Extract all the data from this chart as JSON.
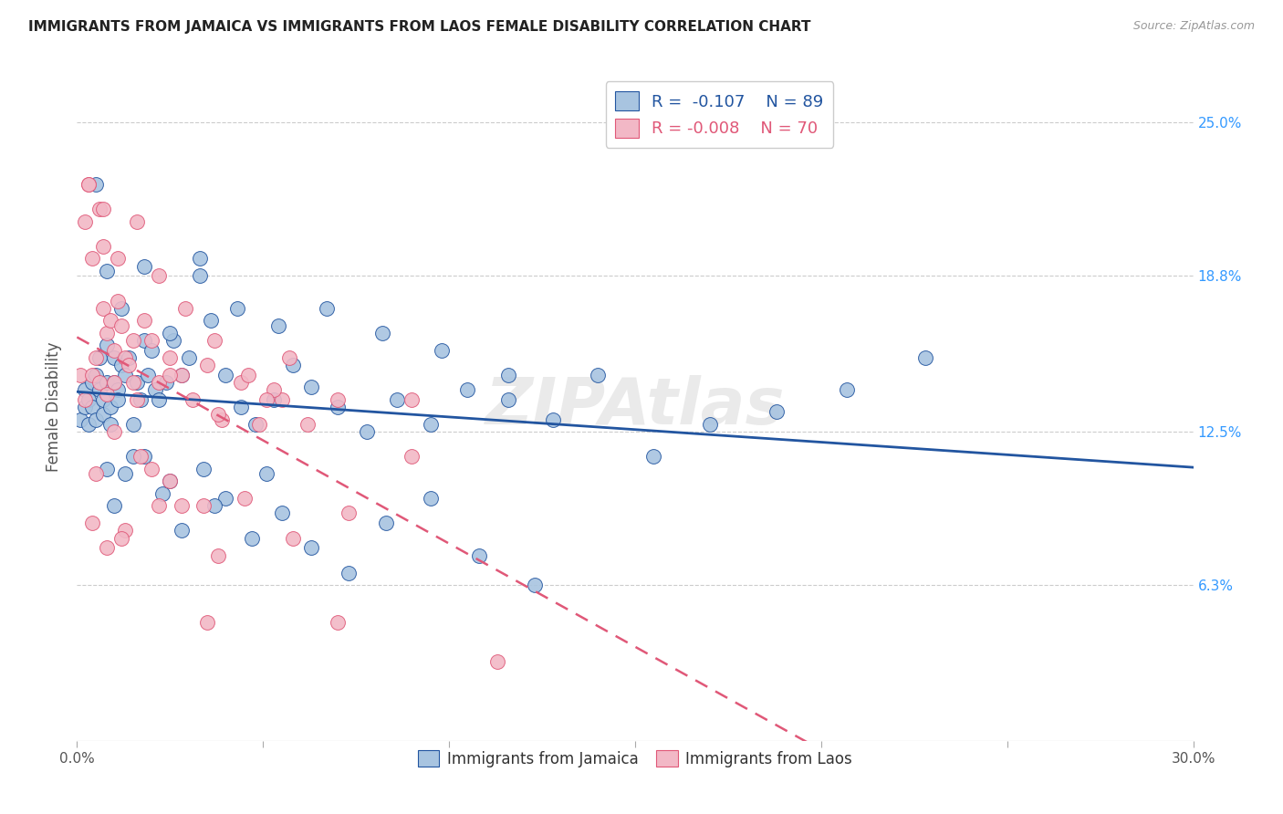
{
  "title": "IMMIGRANTS FROM JAMAICA VS IMMIGRANTS FROM LAOS FEMALE DISABILITY CORRELATION CHART",
  "source": "Source: ZipAtlas.com",
  "ylabel": "Female Disability",
  "ytick_labels": [
    "6.3%",
    "12.5%",
    "18.8%",
    "25.0%"
  ],
  "ytick_values": [
    0.063,
    0.125,
    0.188,
    0.25
  ],
  "xlim": [
    0.0,
    0.3
  ],
  "ylim": [
    0.0,
    0.27
  ],
  "legend1_r": "-0.107",
  "legend1_n": "89",
  "legend2_r": "-0.008",
  "legend2_n": "70",
  "color_jamaica": "#A8C4E0",
  "color_laos": "#F2B8C6",
  "trendline_jamaica_color": "#2255A0",
  "trendline_laos_color": "#E05878",
  "background_color": "#ffffff",
  "jamaica_x": [
    0.001,
    0.002,
    0.002,
    0.003,
    0.003,
    0.004,
    0.004,
    0.005,
    0.005,
    0.006,
    0.006,
    0.007,
    0.007,
    0.008,
    0.008,
    0.009,
    0.009,
    0.01,
    0.01,
    0.011,
    0.011,
    0.012,
    0.013,
    0.014,
    0.015,
    0.016,
    0.017,
    0.018,
    0.019,
    0.02,
    0.021,
    0.022,
    0.024,
    0.026,
    0.028,
    0.03,
    0.033,
    0.036,
    0.04,
    0.044,
    0.048,
    0.053,
    0.058,
    0.063,
    0.07,
    0.078,
    0.086,
    0.095,
    0.105,
    0.116,
    0.128,
    0.14,
    0.155,
    0.17,
    0.188,
    0.207,
    0.228,
    0.01,
    0.013,
    0.018,
    0.023,
    0.028,
    0.034,
    0.04,
    0.047,
    0.055,
    0.063,
    0.073,
    0.083,
    0.095,
    0.108,
    0.123,
    0.005,
    0.008,
    0.012,
    0.018,
    0.025,
    0.033,
    0.043,
    0.054,
    0.067,
    0.082,
    0.098,
    0.116,
    0.008,
    0.015,
    0.025,
    0.037,
    0.051
  ],
  "jamaica_y": [
    0.13,
    0.135,
    0.142,
    0.128,
    0.138,
    0.145,
    0.135,
    0.13,
    0.148,
    0.142,
    0.155,
    0.138,
    0.132,
    0.16,
    0.145,
    0.135,
    0.128,
    0.145,
    0.155,
    0.142,
    0.138,
    0.152,
    0.148,
    0.155,
    0.128,
    0.145,
    0.138,
    0.162,
    0.148,
    0.158,
    0.142,
    0.138,
    0.145,
    0.162,
    0.148,
    0.155,
    0.195,
    0.17,
    0.148,
    0.135,
    0.128,
    0.138,
    0.152,
    0.143,
    0.135,
    0.125,
    0.138,
    0.128,
    0.142,
    0.138,
    0.13,
    0.148,
    0.115,
    0.128,
    0.133,
    0.142,
    0.155,
    0.095,
    0.108,
    0.115,
    0.1,
    0.085,
    0.11,
    0.098,
    0.082,
    0.092,
    0.078,
    0.068,
    0.088,
    0.098,
    0.075,
    0.063,
    0.225,
    0.19,
    0.175,
    0.192,
    0.165,
    0.188,
    0.175,
    0.168,
    0.175,
    0.165,
    0.158,
    0.148,
    0.11,
    0.115,
    0.105,
    0.095,
    0.108
  ],
  "laos_x": [
    0.001,
    0.002,
    0.002,
    0.003,
    0.004,
    0.004,
    0.005,
    0.006,
    0.006,
    0.007,
    0.007,
    0.008,
    0.008,
    0.009,
    0.01,
    0.01,
    0.011,
    0.012,
    0.013,
    0.014,
    0.015,
    0.016,
    0.018,
    0.02,
    0.022,
    0.025,
    0.028,
    0.031,
    0.035,
    0.039,
    0.044,
    0.049,
    0.055,
    0.062,
    0.003,
    0.007,
    0.011,
    0.016,
    0.022,
    0.029,
    0.037,
    0.046,
    0.057,
    0.005,
    0.01,
    0.017,
    0.025,
    0.034,
    0.045,
    0.058,
    0.073,
    0.09,
    0.008,
    0.013,
    0.02,
    0.028,
    0.038,
    0.015,
    0.025,
    0.038,
    0.053,
    0.07,
    0.09,
    0.113,
    0.004,
    0.012,
    0.022,
    0.035,
    0.051,
    0.07
  ],
  "laos_y": [
    0.148,
    0.21,
    0.138,
    0.225,
    0.195,
    0.148,
    0.155,
    0.215,
    0.145,
    0.2,
    0.175,
    0.165,
    0.14,
    0.17,
    0.158,
    0.145,
    0.178,
    0.168,
    0.155,
    0.152,
    0.145,
    0.138,
    0.17,
    0.162,
    0.145,
    0.155,
    0.148,
    0.138,
    0.152,
    0.13,
    0.145,
    0.128,
    0.138,
    0.128,
    0.225,
    0.215,
    0.195,
    0.21,
    0.188,
    0.175,
    0.162,
    0.148,
    0.155,
    0.108,
    0.125,
    0.115,
    0.105,
    0.095,
    0.098,
    0.082,
    0.092,
    0.115,
    0.078,
    0.085,
    0.11,
    0.095,
    0.075,
    0.162,
    0.148,
    0.132,
    0.142,
    0.048,
    0.138,
    0.032,
    0.088,
    0.082,
    0.095,
    0.048,
    0.138,
    0.138
  ]
}
